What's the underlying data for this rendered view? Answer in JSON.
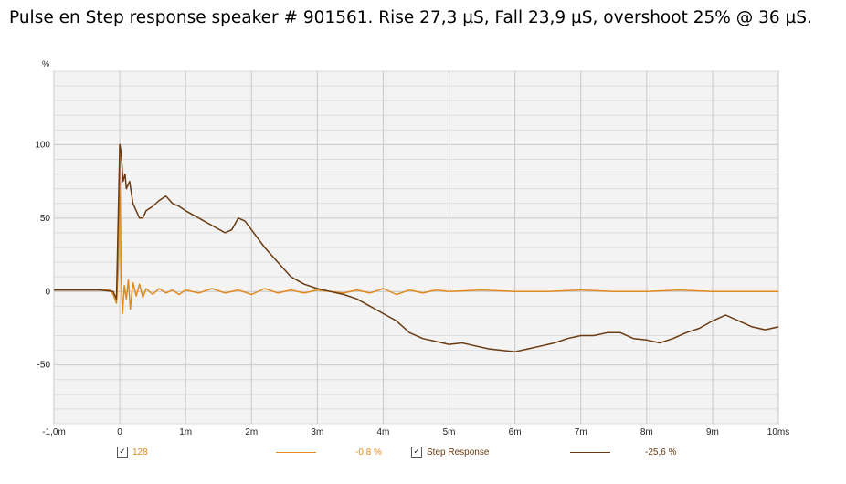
{
  "title": "Pulse en Step response speaker # 901561. Rise 27,3 µS, Fall 23,9 µS, overshoot 25% @ 36 µS.",
  "chart_data": {
    "type": "line",
    "ylabel": "%",
    "xlim": [
      -1.0,
      10.0
    ],
    "ylim": [
      -90,
      150
    ],
    "x_ticks": [
      -1,
      0,
      1,
      2,
      3,
      4,
      5,
      6,
      7,
      8,
      9,
      10
    ],
    "x_tick_labels": [
      "-1,0m",
      "0",
      "1m",
      "2m",
      "3m",
      "4m",
      "5m",
      "6m",
      "7m",
      "8m",
      "9m",
      "10ms"
    ],
    "y_ticks": [
      100,
      50,
      0,
      -50
    ],
    "y_tick_labels": [
      "100",
      "50",
      "0",
      "-50"
    ],
    "grid": true,
    "series": [
      {
        "name": "128",
        "color": "#e08a1e",
        "legend_value": "-0,8 %",
        "checked": true,
        "x": [
          -1.0,
          -0.3,
          -0.15,
          -0.1,
          -0.05,
          -0.02,
          0.0,
          0.02,
          0.04,
          0.07,
          0.1,
          0.13,
          0.16,
          0.2,
          0.25,
          0.3,
          0.35,
          0.4,
          0.5,
          0.6,
          0.7,
          0.8,
          0.9,
          1.0,
          1.2,
          1.4,
          1.6,
          1.8,
          2.0,
          2.2,
          2.4,
          2.6,
          2.8,
          3.0,
          3.2,
          3.4,
          3.6,
          3.8,
          4.0,
          4.2,
          4.4,
          4.6,
          4.8,
          5.0,
          5.5,
          6.0,
          6.5,
          7.0,
          7.5,
          8.0,
          8.5,
          9.0,
          9.5,
          10.0
        ],
        "y": [
          1,
          1,
          1,
          -2,
          -8,
          18,
          100,
          10,
          -15,
          4,
          -5,
          8,
          -12,
          6,
          -3,
          5,
          -4,
          2,
          -2,
          2,
          -1,
          1,
          -2,
          1,
          -1,
          2,
          -1,
          1,
          -2,
          2,
          -1,
          1,
          -1,
          1,
          0,
          -1,
          1,
          -1,
          2,
          -2,
          1,
          -1,
          1,
          0,
          1,
          0,
          0,
          1,
          0,
          0,
          1,
          0,
          0,
          0
        ]
      },
      {
        "name": "Step Response",
        "color": "#6a3a10",
        "legend_value": "-25,6 %",
        "checked": true,
        "x": [
          -1.0,
          -0.3,
          -0.1,
          -0.05,
          0.0,
          0.02,
          0.05,
          0.08,
          0.1,
          0.15,
          0.2,
          0.25,
          0.3,
          0.35,
          0.4,
          0.5,
          0.6,
          0.7,
          0.8,
          0.9,
          1.0,
          1.2,
          1.4,
          1.6,
          1.7,
          1.8,
          1.9,
          2.0,
          2.2,
          2.4,
          2.6,
          2.8,
          3.0,
          3.2,
          3.4,
          3.6,
          3.8,
          4.0,
          4.2,
          4.4,
          4.6,
          4.8,
          5.0,
          5.2,
          5.4,
          5.6,
          5.8,
          6.0,
          6.2,
          6.4,
          6.6,
          6.8,
          7.0,
          7.2,
          7.4,
          7.6,
          7.8,
          8.0,
          8.2,
          8.4,
          8.6,
          8.8,
          9.0,
          9.1,
          9.2,
          9.4,
          9.6,
          9.8,
          10.0
        ],
        "y": [
          1,
          1,
          0,
          -5,
          100,
          95,
          75,
          80,
          70,
          75,
          60,
          55,
          50,
          50,
          55,
          58,
          62,
          65,
          60,
          58,
          55,
          50,
          45,
          40,
          42,
          50,
          48,
          42,
          30,
          20,
          10,
          5,
          2,
          0,
          -2,
          -5,
          -10,
          -15,
          -20,
          -28,
          -32,
          -34,
          -36,
          -35,
          -37,
          -39,
          -40,
          -41,
          -39,
          -37,
          -35,
          -32,
          -30,
          -30,
          -28,
          -28,
          -32,
          -33,
          -35,
          -32,
          -28,
          -25,
          -20,
          -18,
          -16,
          -20,
          -24,
          -26,
          -24
        ]
      }
    ]
  }
}
